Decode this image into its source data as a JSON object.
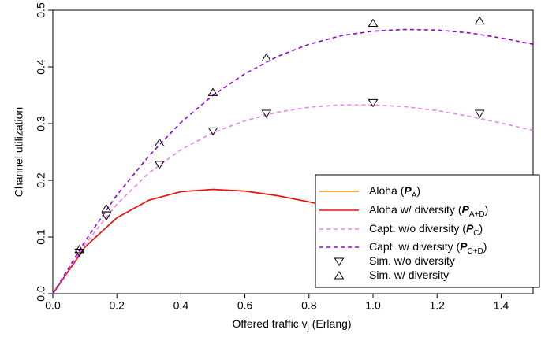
{
  "chart_data": {
    "type": "line",
    "ylabel": "Channel utilization",
    "xlabel": [
      "Offered traffic  v",
      "j",
      " (Erlang)"
    ],
    "xlim": [
      0,
      1.5
    ],
    "xticks": [
      {
        "value": 0,
        "label": "0.0"
      },
      0.2,
      0.4,
      0.6,
      0.8,
      {
        "value": 1,
        "label": "1.0"
      },
      1.2,
      1.4
    ],
    "ylim": [
      0,
      0.5
    ],
    "yticks": [
      {
        "value": 0,
        "label": "0.0"
      },
      0.1,
      0.2,
      0.3,
      0.4,
      0.5
    ],
    "legend": "bottom-right",
    "series": [
      {
        "name": [
          "Aloha (",
          "P",
          "A",
          ")"
        ],
        "color": "#ff8c00",
        "style": "solid",
        "x": [
          0,
          0.1,
          0.2,
          0.3,
          0.4,
          0.5,
          0.6,
          0.7,
          0.8,
          0.9,
          1.0,
          1.1,
          1.2,
          1.3,
          1.4,
          1.5
        ],
        "values": [
          0,
          0.082,
          0.134,
          0.165,
          0.18,
          0.184,
          0.181,
          0.173,
          0.162,
          0.149,
          0.135,
          0.122,
          0.109,
          0.096,
          0.085,
          0.075
        ]
      },
      {
        "name": [
          "Aloha w/ diversity (",
          "P",
          "A+D",
          ")"
        ],
        "color": "#e81010",
        "style": "solid",
        "x": [
          0,
          0.1,
          0.2,
          0.3,
          0.4,
          0.5,
          0.6,
          0.7,
          0.8,
          0.9,
          1.0,
          1.1,
          1.2,
          1.3,
          1.4,
          1.5
        ],
        "values": [
          0,
          0.082,
          0.134,
          0.165,
          0.18,
          0.184,
          0.181,
          0.173,
          0.162,
          0.149,
          0.135,
          0.122,
          0.109,
          0.096,
          0.085,
          0.075
        ]
      },
      {
        "name": [
          "Capt. w/o diversity  (",
          "P",
          "C",
          ")"
        ],
        "color": "#ee82ee",
        "style": "dashed",
        "x": [
          0,
          0.1,
          0.2,
          0.3,
          0.4,
          0.5,
          0.6,
          0.7,
          0.8,
          0.9,
          1.0,
          1.1,
          1.2,
          1.3,
          1.4,
          1.5
        ],
        "values": [
          0,
          0.087,
          0.158,
          0.213,
          0.254,
          0.284,
          0.305,
          0.32,
          0.329,
          0.333,
          0.333,
          0.33,
          0.323,
          0.313,
          0.301,
          0.288
        ]
      },
      {
        "name": [
          "Capt. w/ diversity  (",
          "P",
          "C+D",
          ")"
        ],
        "color": "#9400d3",
        "style": "dashed",
        "x": [
          0,
          0.1,
          0.2,
          0.3,
          0.4,
          0.5,
          0.6,
          0.7,
          0.8,
          0.9,
          1.0,
          1.1,
          1.2,
          1.3,
          1.4,
          1.5
        ],
        "values": [
          0,
          0.092,
          0.174,
          0.243,
          0.302,
          0.35,
          0.388,
          0.418,
          0.44,
          0.455,
          0.463,
          0.466,
          0.465,
          0.46,
          0.451,
          0.44
        ]
      },
      {
        "name": [
          "Sim. w/o diversity"
        ],
        "color": "#000000",
        "style": "triangle-down",
        "x": [
          0.083,
          0.167,
          0.333,
          0.5,
          0.667,
          1.0,
          1.333
        ],
        "values": [
          0.073,
          0.137,
          0.228,
          0.287,
          0.318,
          0.337,
          0.318
        ]
      },
      {
        "name": [
          "Sim. w/ diversity"
        ],
        "color": "#000000",
        "style": "triangle-up",
        "x": [
          0.083,
          0.167,
          0.333,
          0.5,
          0.667,
          1.0,
          1.333
        ],
        "values": [
          0.078,
          0.15,
          0.266,
          0.355,
          0.416,
          0.477,
          0.481
        ]
      }
    ]
  }
}
